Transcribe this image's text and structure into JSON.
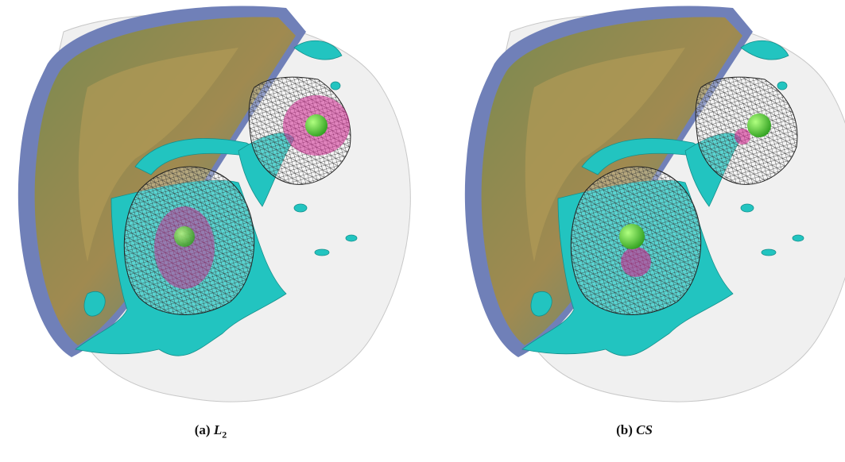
{
  "panels": [
    {
      "label": "(a)",
      "caption": "L",
      "subscript": "2"
    },
    {
      "label": "(b)",
      "caption": "CS"
    }
  ]
}
